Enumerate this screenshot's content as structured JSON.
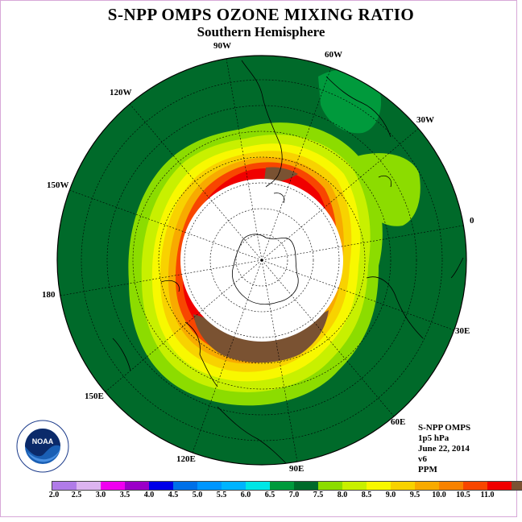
{
  "title": "S-NPP OMPS OZONE MIXING RATIO",
  "subtitle": "Southern Hemisphere",
  "longitude_labels": [
    "90W",
    "60W",
    "120W",
    "30W",
    "150W",
    "0",
    "180",
    "30E",
    "150E",
    "60E",
    "120E",
    "90E"
  ],
  "info": {
    "instrument": "S-NPP OMPS",
    "level": "1p5 hPa",
    "date": "June 22, 2014",
    "version": "v6",
    "units": "PPM"
  },
  "logo_text": "NOAA",
  "colorbar": {
    "colors": [
      "#b07be8",
      "#dcb4f0",
      "#f000f0",
      "#9b00c8",
      "#0000e8",
      "#0070e8",
      "#0096ff",
      "#00b4ff",
      "#00e6e6",
      "#009a3c",
      "#006a2a",
      "#8cdc00",
      "#c8f000",
      "#f8f800",
      "#f8d200",
      "#f8aa00",
      "#f88200",
      "#f84600",
      "#f00000",
      "#7a5232"
    ],
    "ticks": [
      "2.0",
      "2.5",
      "3.0",
      "3.5",
      "4.0",
      "4.5",
      "5.0",
      "5.5",
      "6.0",
      "6.5",
      "7.0",
      "7.5",
      "8.0",
      "8.5",
      "9.0",
      "9.5",
      "10.0",
      "10.5",
      "11.0"
    ]
  }
}
